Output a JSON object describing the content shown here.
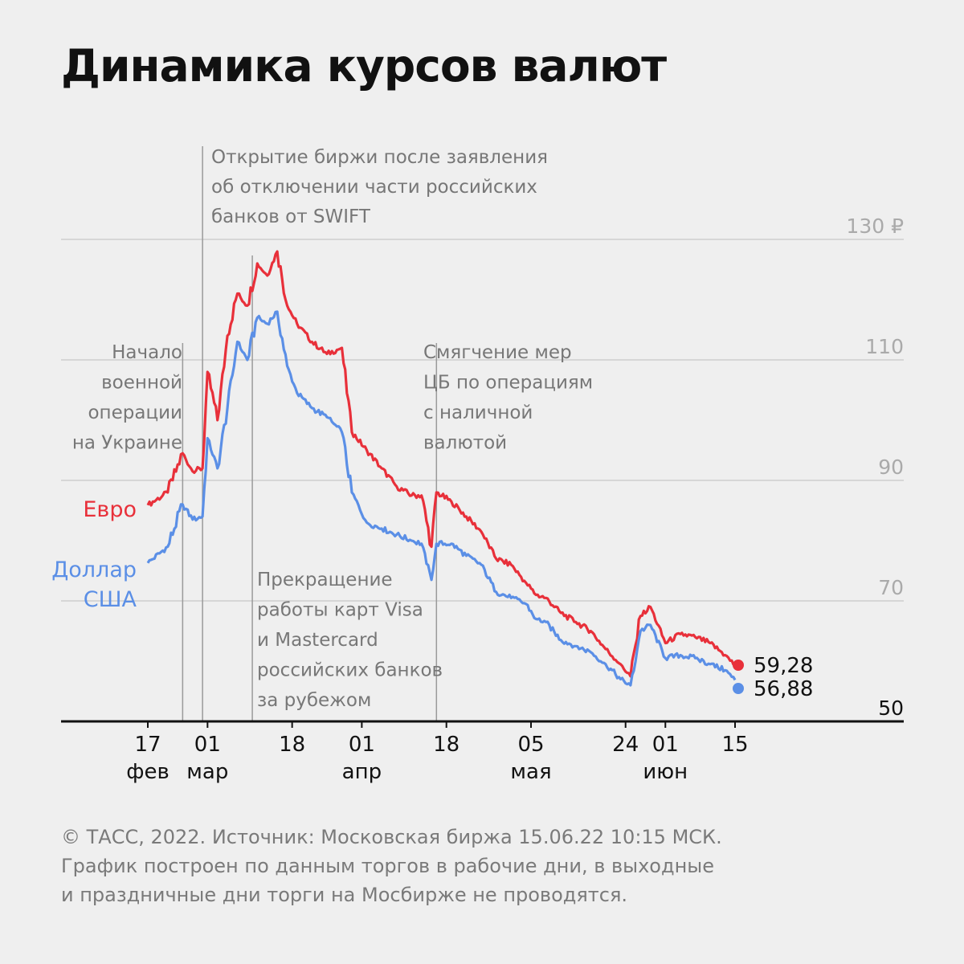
{
  "title": "Динамика курсов валют",
  "chart_data": {
    "type": "line",
    "ylim": [
      50,
      135
    ],
    "xlim": [
      "2022-02-14",
      "2022-06-24"
    ],
    "y_ticks": [
      {
        "value": 130,
        "label": "130 ₽"
      },
      {
        "value": 110,
        "label": "110"
      },
      {
        "value": 90,
        "label": "90"
      },
      {
        "value": 70,
        "label": "70"
      },
      {
        "value": 50,
        "label": "50"
      }
    ],
    "x_ticks": [
      {
        "date": "2022-02-17",
        "day": "17",
        "month": "фев"
      },
      {
        "date": "2022-03-01",
        "day": "01",
        "month": "мар"
      },
      {
        "date": "2022-03-18",
        "day": "18",
        "month": ""
      },
      {
        "date": "2022-04-01",
        "day": "01",
        "month": "апр"
      },
      {
        "date": "2022-04-18",
        "day": "18",
        "month": ""
      },
      {
        "date": "2022-05-05",
        "day": "05",
        "month": "мая"
      },
      {
        "date": "2022-05-24",
        "day": "24",
        "month": ""
      },
      {
        "date": "2022-06-01",
        "day": "01",
        "month": "июн"
      },
      {
        "date": "2022-06-15",
        "day": "15",
        "month": ""
      }
    ],
    "series": [
      {
        "name": "Евро",
        "label_lines": [
          "Евро"
        ],
        "color": "#e8303a",
        "end_label": "59,28",
        "points": [
          [
            "2022-02-17",
            85.9
          ],
          [
            "2022-02-21",
            88.0
          ],
          [
            "2022-02-24",
            94.5
          ],
          [
            "2022-02-26",
            91.5
          ],
          [
            "2022-02-28",
            92.0
          ],
          [
            "2022-03-01",
            108.0
          ],
          [
            "2022-03-03",
            100.0
          ],
          [
            "2022-03-05",
            114.0
          ],
          [
            "2022-03-07",
            121.0
          ],
          [
            "2022-03-09",
            119.0
          ],
          [
            "2022-03-11",
            126.0
          ],
          [
            "2022-03-13",
            124.0
          ],
          [
            "2022-03-15",
            128.0
          ],
          [
            "2022-03-17",
            119.0
          ],
          [
            "2022-03-19",
            116.0
          ],
          [
            "2022-03-22",
            113.0
          ],
          [
            "2022-03-25",
            111.0
          ],
          [
            "2022-03-28",
            112.0
          ],
          [
            "2022-03-30",
            98.0
          ],
          [
            "2022-04-02",
            95.0
          ],
          [
            "2022-04-05",
            92.0
          ],
          [
            "2022-04-08",
            89.0
          ],
          [
            "2022-04-11",
            87.5
          ],
          [
            "2022-04-13",
            87.5
          ],
          [
            "2022-04-15",
            79.0
          ],
          [
            "2022-04-16",
            88.0
          ],
          [
            "2022-04-19",
            86.5
          ],
          [
            "2022-04-22",
            84.0
          ],
          [
            "2022-04-25",
            81.5
          ],
          [
            "2022-04-28",
            77.0
          ],
          [
            "2022-05-01",
            76.0
          ],
          [
            "2022-05-04",
            73.0
          ],
          [
            "2022-05-06",
            71.0
          ],
          [
            "2022-05-08",
            70.5
          ],
          [
            "2022-05-11",
            68.0
          ],
          [
            "2022-05-14",
            66.5
          ],
          [
            "2022-05-17",
            65.0
          ],
          [
            "2022-05-20",
            62.0
          ],
          [
            "2022-05-23",
            59.5
          ],
          [
            "2022-05-25",
            57.5
          ],
          [
            "2022-05-27",
            67.5
          ],
          [
            "2022-05-29",
            69.0
          ],
          [
            "2022-06-01",
            63.0
          ],
          [
            "2022-06-04",
            64.5
          ],
          [
            "2022-06-07",
            64.0
          ],
          [
            "2022-06-10",
            63.0
          ],
          [
            "2022-06-13",
            61.0
          ],
          [
            "2022-06-15",
            59.28
          ]
        ]
      },
      {
        "name": "Доллар США",
        "label_lines": [
          "Доллар",
          "США"
        ],
        "color": "#5b8fe6",
        "end_label": "56,88",
        "points": [
          [
            "2022-02-17",
            76.3
          ],
          [
            "2022-02-21",
            79.0
          ],
          [
            "2022-02-24",
            86.0
          ],
          [
            "2022-02-26",
            83.5
          ],
          [
            "2022-02-28",
            84.0
          ],
          [
            "2022-03-01",
            97.0
          ],
          [
            "2022-03-03",
            92.0
          ],
          [
            "2022-03-05",
            102.0
          ],
          [
            "2022-03-07",
            113.0
          ],
          [
            "2022-03-09",
            110.0
          ],
          [
            "2022-03-11",
            117.0
          ],
          [
            "2022-03-13",
            116.0
          ],
          [
            "2022-03-15",
            118.0
          ],
          [
            "2022-03-17",
            109.0
          ],
          [
            "2022-03-19",
            104.5
          ],
          [
            "2022-03-22",
            102.0
          ],
          [
            "2022-03-25",
            100.5
          ],
          [
            "2022-03-28",
            98.0
          ],
          [
            "2022-03-30",
            88.0
          ],
          [
            "2022-04-02",
            83.0
          ],
          [
            "2022-04-05",
            82.0
          ],
          [
            "2022-04-08",
            81.0
          ],
          [
            "2022-04-11",
            80.0
          ],
          [
            "2022-04-13",
            79.5
          ],
          [
            "2022-04-15",
            73.5
          ],
          [
            "2022-04-16",
            79.5
          ],
          [
            "2022-04-19",
            79.5
          ],
          [
            "2022-04-22",
            77.5
          ],
          [
            "2022-04-25",
            76.0
          ],
          [
            "2022-04-28",
            71.5
          ],
          [
            "2022-05-01",
            70.5
          ],
          [
            "2022-05-04",
            69.5
          ],
          [
            "2022-05-06",
            67.0
          ],
          [
            "2022-05-08",
            66.5
          ],
          [
            "2022-05-11",
            63.5
          ],
          [
            "2022-05-14",
            62.5
          ],
          [
            "2022-05-17",
            61.5
          ],
          [
            "2022-05-20",
            59.5
          ],
          [
            "2022-05-23",
            57.0
          ],
          [
            "2022-05-25",
            56.0
          ],
          [
            "2022-05-27",
            65.0
          ],
          [
            "2022-05-29",
            66.0
          ],
          [
            "2022-06-01",
            60.5
          ],
          [
            "2022-06-04",
            61.0
          ],
          [
            "2022-06-07",
            60.5
          ],
          [
            "2022-06-10",
            59.5
          ],
          [
            "2022-06-13",
            58.5
          ],
          [
            "2022-06-15",
            56.88
          ]
        ]
      }
    ],
    "annotations": [
      {
        "date": "2022-02-24",
        "text_lines": [
          "Начало",
          "военной",
          "операции",
          "на Украине"
        ]
      },
      {
        "date": "2022-02-28",
        "text_lines": [
          "Открытие биржи после заявления",
          "об отключении части российских",
          "банков от SWIFT"
        ]
      },
      {
        "date": "2022-03-10",
        "text_lines": [
          "Прекращение",
          "работы карт Visa",
          "и Mastercard",
          "российских банков",
          "за рубежом"
        ]
      },
      {
        "date": "2022-04-16",
        "text_lines": [
          "Смягчение мер",
          "ЦБ по операциям",
          "с наличной",
          "валютой"
        ]
      }
    ]
  },
  "footnote": {
    "line1": "© ТАСС, 2022. Источник: Московская биржа 15.06.22 10:15 МСК.",
    "line2": "График построен по данным торгов в рабочие дни, в выходные",
    "line3": "и праздничные дни торги на Мосбирже не проводятся."
  }
}
